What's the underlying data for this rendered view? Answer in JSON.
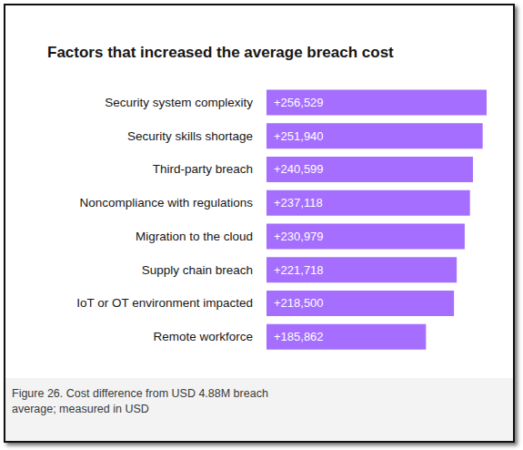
{
  "chart_data": {
    "type": "bar",
    "orientation": "horizontal",
    "title": "Factors that increased the average breach cost",
    "annotations": [
      "Figure 26. Cost difference from USD 4.88M breach average; measured in USD"
    ],
    "categories": [
      "Security system complexity",
      "Security skills shortage",
      "Third-party breach",
      "Noncompliance with regulations",
      "Migration to the cloud",
      "Supply chain breach",
      "IoT or OT environment impacted",
      "Remote workforce"
    ],
    "values": [
      256529,
      251940,
      240599,
      237118,
      230979,
      221718,
      218500,
      185862
    ],
    "value_labels": [
      "+256,529",
      "+251,940",
      "+240,599",
      "+237,118",
      "+230,979",
      "+221,718",
      "+218,500",
      "+185,862"
    ],
    "color": "#a56eff",
    "xlim": [
      0,
      256529
    ],
    "grid": false,
    "tick_labels": false,
    "data_labels": true
  }
}
